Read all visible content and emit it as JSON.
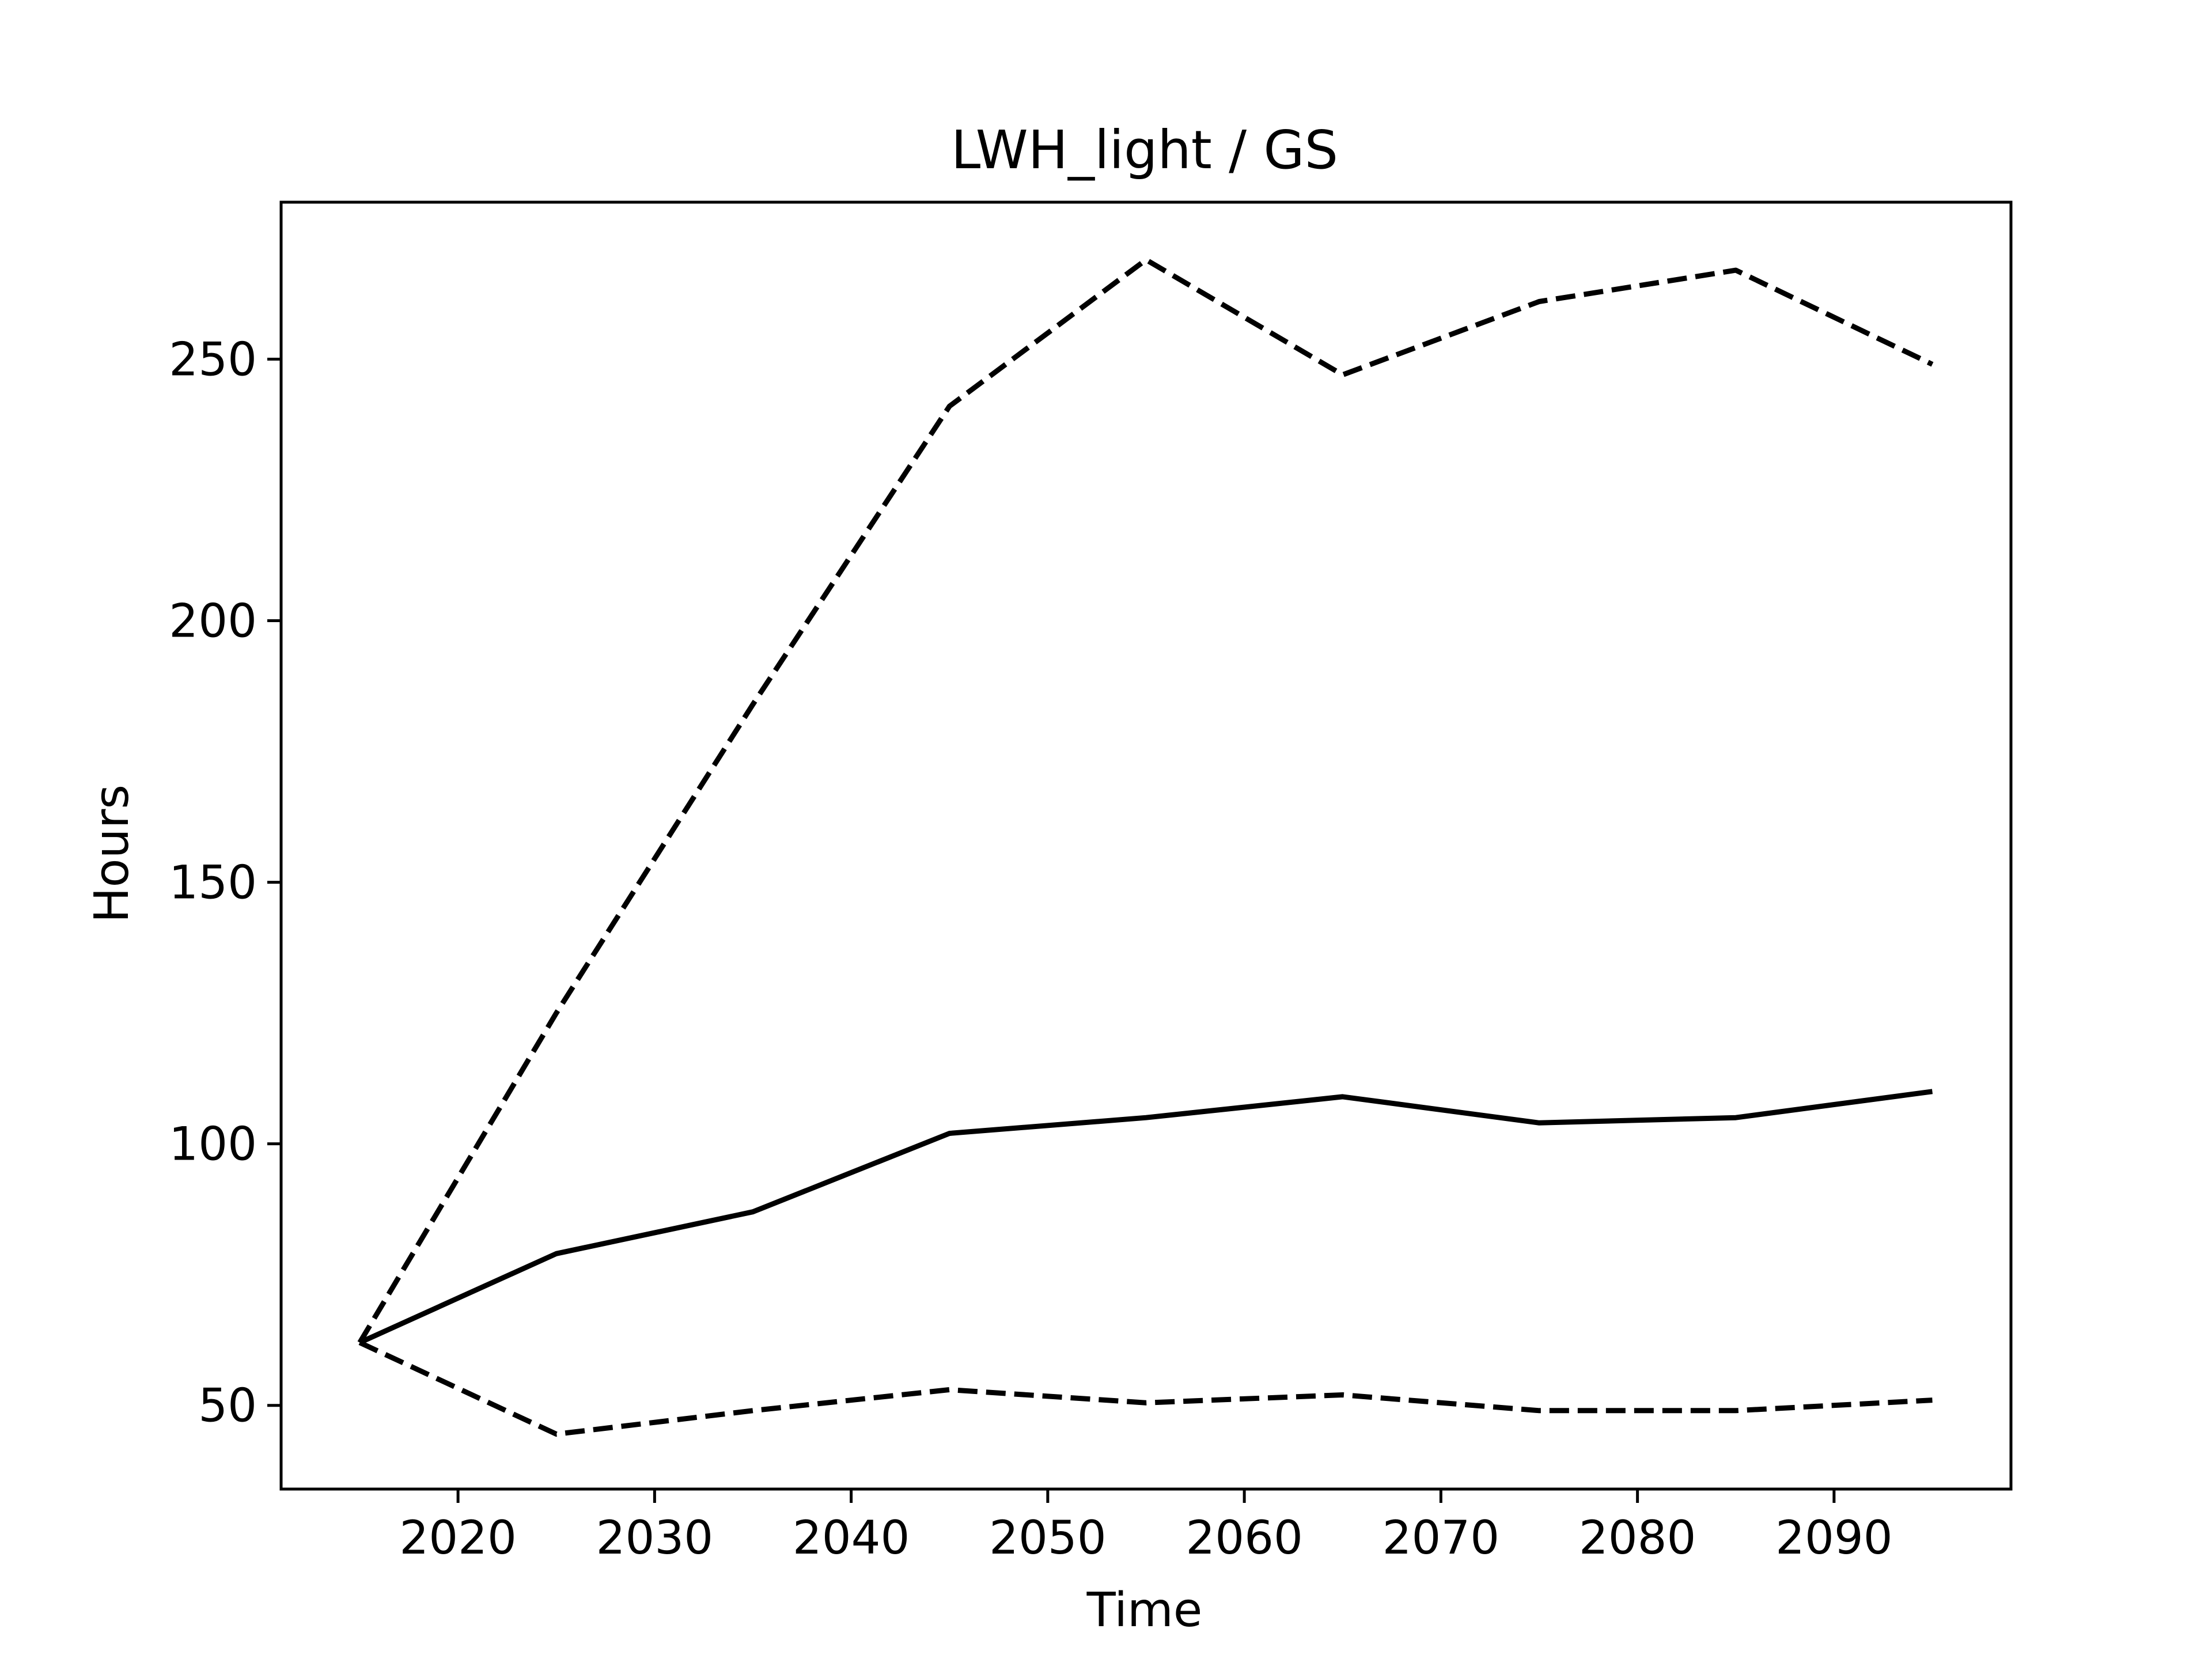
{
  "chart_data": {
    "type": "line",
    "title": "LWH_light / GS",
    "xlabel": "Time",
    "ylabel": "Hours",
    "xlim": [
      2011,
      2099
    ],
    "ylim": [
      34,
      280
    ],
    "x_ticks": [
      2020,
      2030,
      2040,
      2050,
      2060,
      2070,
      2080,
      2090
    ],
    "y_ticks": [
      50,
      100,
      150,
      200,
      250
    ],
    "grid": false,
    "legend": "none",
    "x": [
      2015,
      2025,
      2035,
      2045,
      2055,
      2065,
      2075,
      2085,
      2095
    ],
    "series": [
      {
        "style": "solid",
        "color": "#000000",
        "values": [
          62,
          79,
          87,
          102,
          105,
          109,
          104,
          105,
          110
        ]
      },
      {
        "style": "dashed",
        "color": "#000000",
        "values": [
          62,
          125,
          184,
          241,
          269,
          247,
          261,
          267,
          249
        ]
      },
      {
        "style": "dashed",
        "color": "#000000",
        "values": [
          62,
          44.5,
          49,
          53,
          50.5,
          52,
          49,
          49,
          51
        ]
      }
    ]
  }
}
